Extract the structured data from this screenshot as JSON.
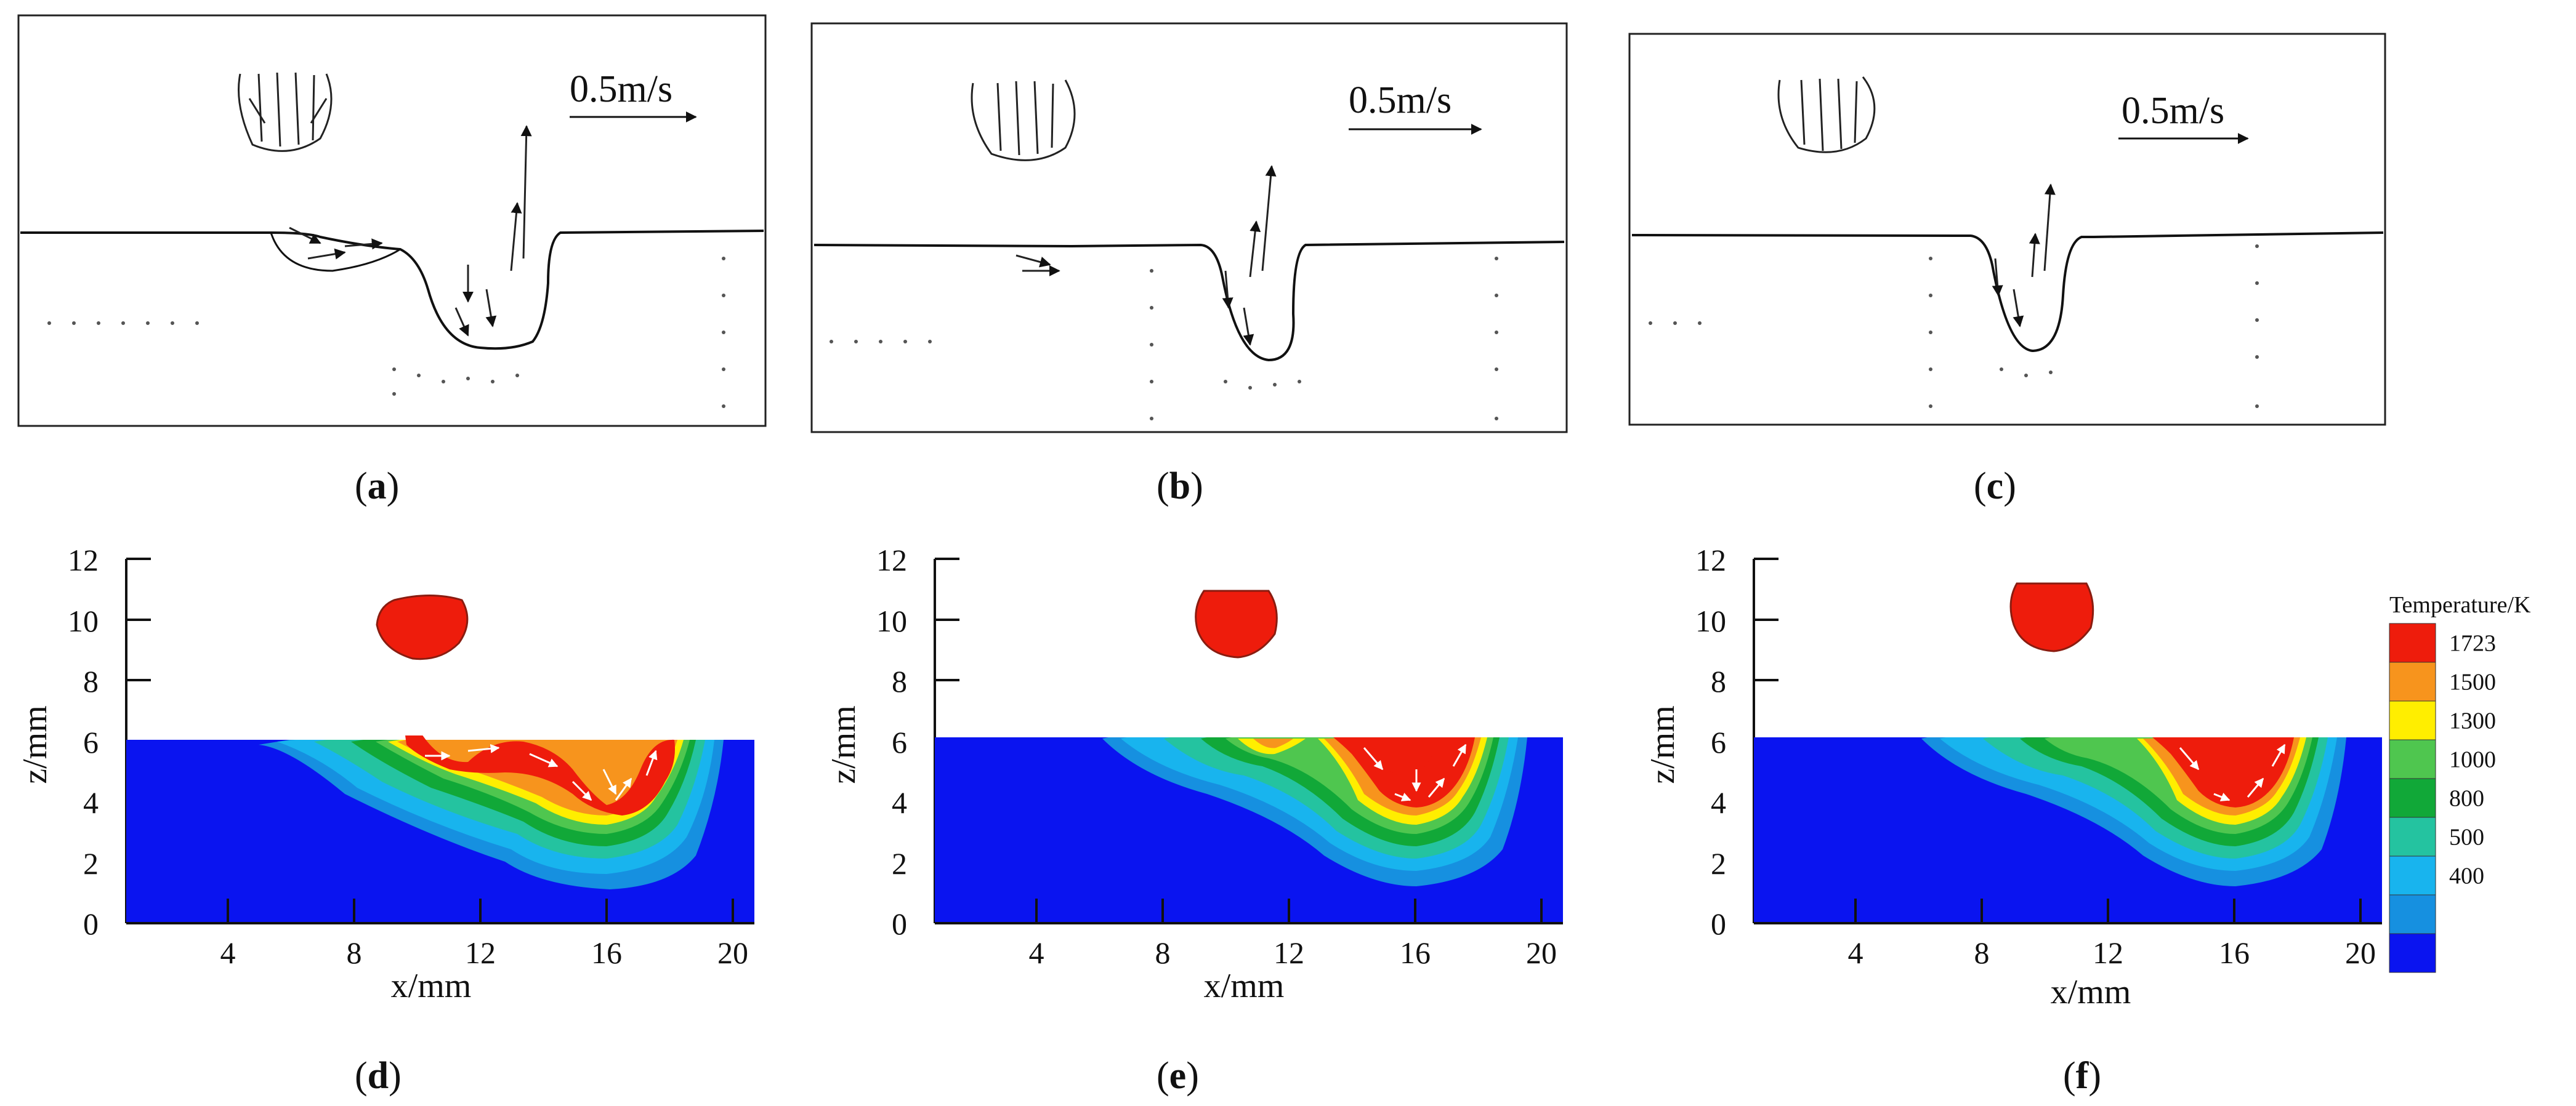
{
  "figure": {
    "velocity_panels": [
      {
        "label": "a",
        "scale_text": "0.5m/s"
      },
      {
        "label": "b",
        "scale_text": "0.5m/s"
      },
      {
        "label": "c",
        "scale_text": "0.5m/s"
      }
    ],
    "temperature_panels": [
      {
        "label": "d"
      },
      {
        "label": "e"
      },
      {
        "label": "f"
      }
    ],
    "axes": {
      "xlabel": "x/mm",
      "ylabel": "z/mm",
      "x_ticks": [
        "4",
        "8",
        "12",
        "16",
        "20"
      ],
      "y_ticks": [
        "0",
        "2",
        "4",
        "6",
        "8",
        "10",
        "12"
      ]
    },
    "legend": {
      "title": "Temperature/K",
      "levels": [
        {
          "value": "1723",
          "color": "#ee1c0c"
        },
        {
          "value": "1500",
          "color": "#f7941d"
        },
        {
          "value": "1300",
          "color": "#ffee00"
        },
        {
          "value": "1000",
          "color": "#4fc64f"
        },
        {
          "value": "800",
          "color": "#11a838"
        },
        {
          "value": "500",
          "color": "#24c3a0"
        },
        {
          "value": "400",
          "color": "#18b4ee"
        },
        {
          "value": "",
          "color": "#1690e0"
        },
        {
          "value": "",
          "color": "#0a14f0"
        }
      ]
    },
    "colors": {
      "background": "#ffffff",
      "ink": "#111111",
      "substrate": "#0a14f0",
      "droplet": "#ee1c0c"
    }
  }
}
